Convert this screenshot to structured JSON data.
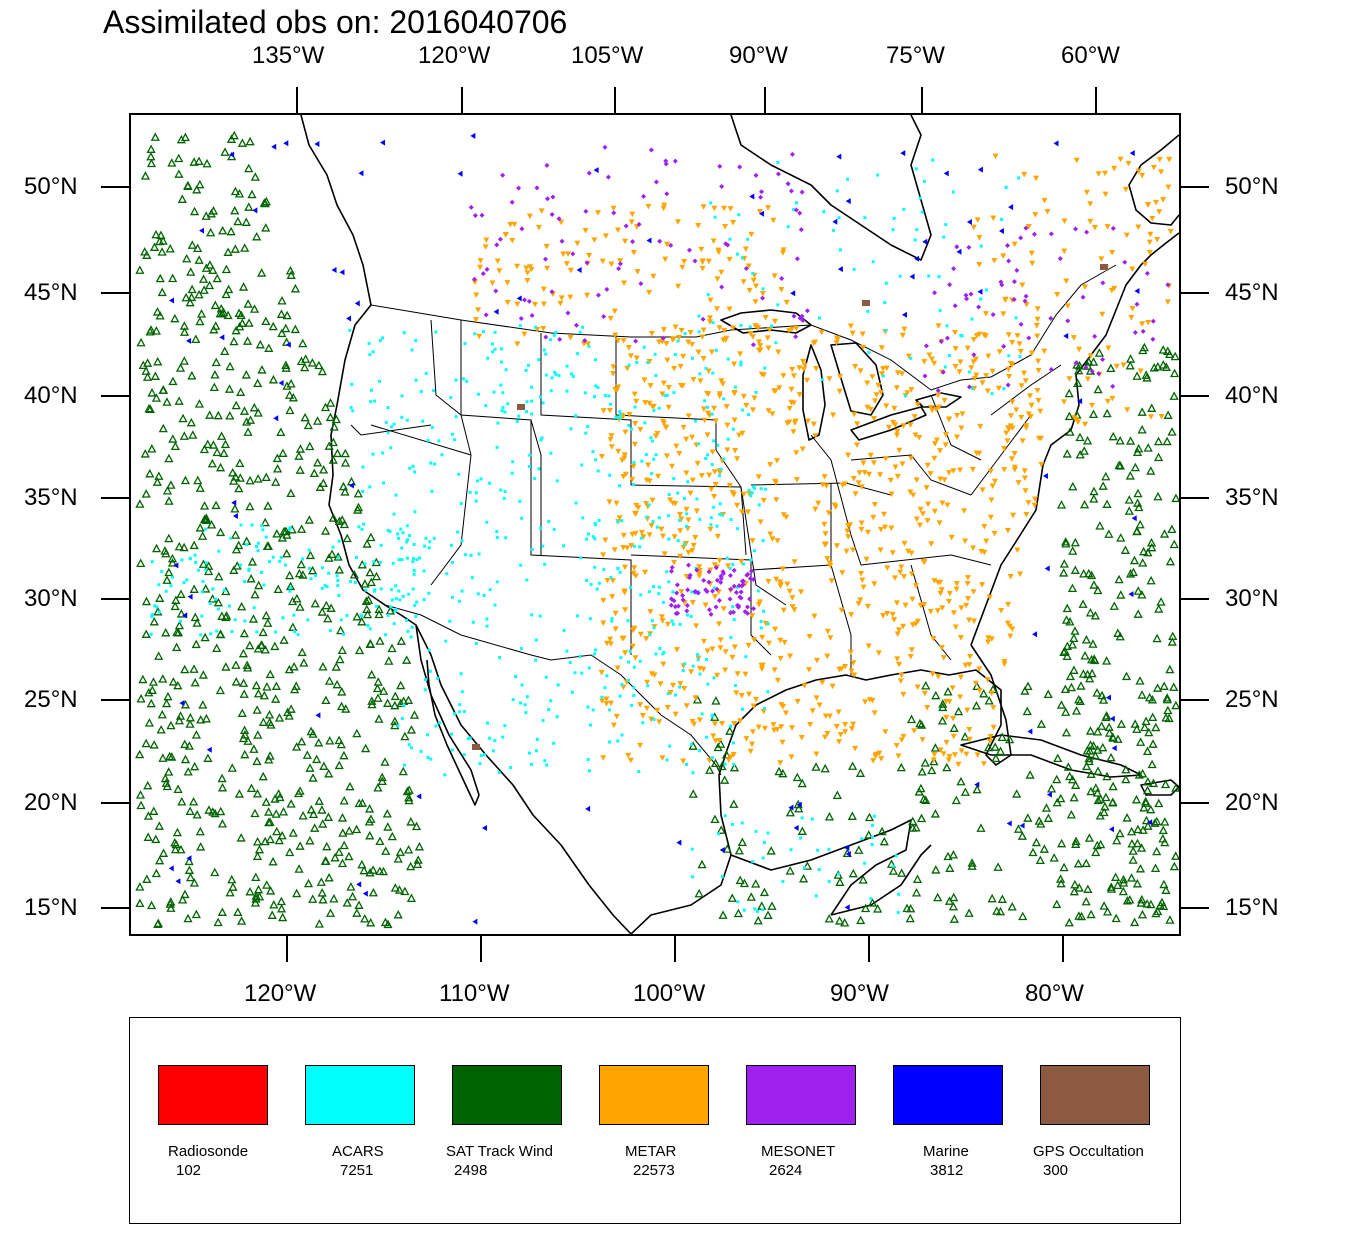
{
  "title": "Assimilated obs on: 2016040706",
  "map": {
    "top_lon_labels": [
      "135°W",
      "120°W",
      "105°W",
      "90°W",
      "75°W",
      "60°W"
    ],
    "bottom_lon_labels": [
      "120°W",
      "110°W",
      "100°W",
      "90°W",
      "80°W"
    ],
    "lat_labels": [
      "50°N",
      "45°N",
      "40°N",
      "35°N",
      "30°N",
      "25°N",
      "20°N",
      "15°N"
    ]
  },
  "legend": {
    "items": [
      {
        "name": "Radiosonde",
        "count": "102",
        "color": "#ff0000"
      },
      {
        "name": "ACARS",
        "count": "7251",
        "color": "#00ffff"
      },
      {
        "name": "SAT Track Wind",
        "count": "2498",
        "color": "#006400"
      },
      {
        "name": "METAR",
        "count": "22573",
        "color": "#ffa500"
      },
      {
        "name": "MESONET",
        "count": "2624",
        "color": "#a020f0"
      },
      {
        "name": "Marine",
        "count": "3812",
        "color": "#0000ff"
      },
      {
        "name": "GPS Occultation",
        "count": "300",
        "color": "#8b5a40"
      }
    ]
  }
}
